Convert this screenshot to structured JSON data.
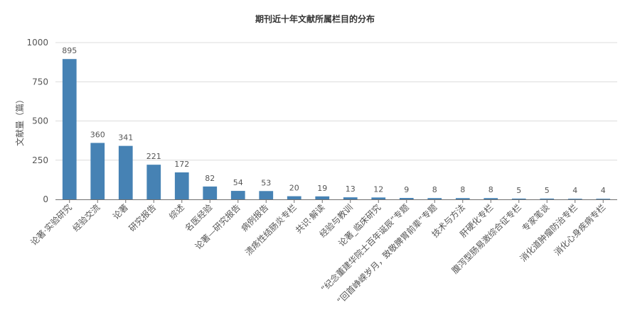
{
  "chart_data": {
    "type": "bar",
    "title": "期刊近十年文献所属栏目的分布",
    "xlabel": "",
    "ylabel": "文献量（篇）",
    "ylim": [
      0,
      1000
    ],
    "yticks": [
      0,
      250,
      500,
      750,
      1000
    ],
    "grid": true,
    "color": "#4682b4",
    "categories": [
      "论著·实验研究",
      "经验交流",
      "论著",
      "研究报告",
      "综述",
      "名医经验",
      "论著—研究报告",
      "病例报告",
      "溃疡性结肠炎专栏",
      "共识·解读",
      "经验与教训",
      "论著_临床研究",
      "“纪念董建华院士百年诞辰”专题",
      "“回首峥嵘岁月，致敬脾胃前辈”专题",
      "技术与方法",
      "肝硬化专栏",
      "腹泻型肠易激综合征专栏",
      "专家笔谈",
      "消化道肿瘤防治专栏",
      "消化心身疾病专栏"
    ],
    "values": [
      895,
      360,
      341,
      221,
      172,
      82,
      54,
      53,
      20,
      19,
      13,
      12,
      9,
      8,
      8,
      8,
      5,
      5,
      4,
      4
    ]
  }
}
